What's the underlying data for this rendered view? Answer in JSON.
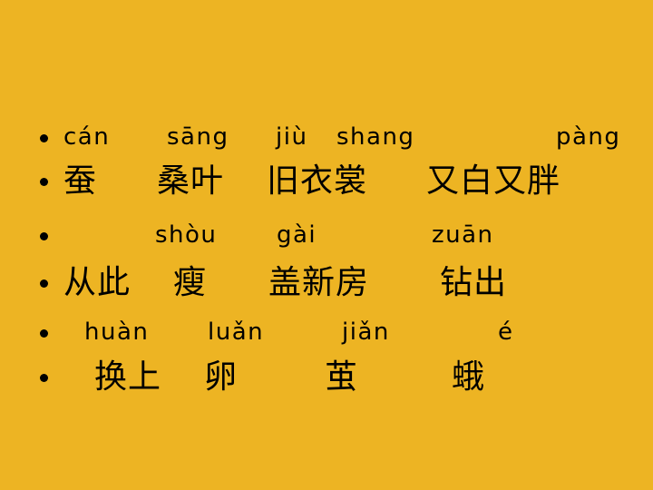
{
  "slide": {
    "background": "#EDB423",
    "text_color": "#000000",
    "bullet_icon": "round-bullet",
    "lines": [
      {
        "kind": "pinyin",
        "items": [
          "cán",
          "sāng",
          "jiù",
          "shang",
          "pàng"
        ]
      },
      {
        "kind": "hanzi",
        "items": [
          "蚕",
          "桑叶",
          "旧衣裳",
          "又白又胖"
        ]
      },
      {
        "kind": "pinyin",
        "items": [
          "shòu",
          "gài",
          "zuān"
        ]
      },
      {
        "kind": "hanzi",
        "items": [
          "从此",
          "瘦",
          "盖新房",
          "钻出"
        ]
      },
      {
        "kind": "pinyin",
        "items": [
          "huàn",
          "luǎn",
          "jiǎn",
          "é"
        ]
      },
      {
        "kind": "hanzi",
        "items": [
          "换上",
          "卵",
          "茧",
          "蛾"
        ]
      }
    ]
  }
}
